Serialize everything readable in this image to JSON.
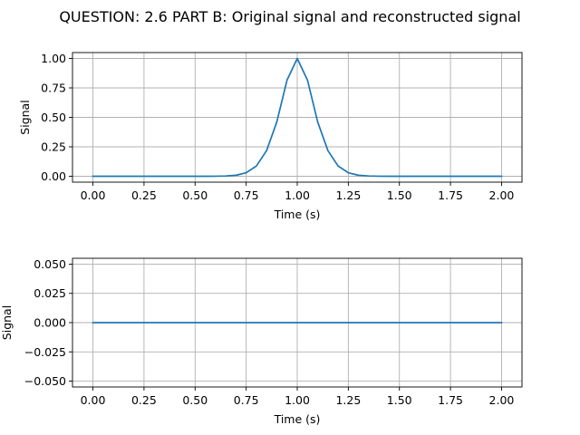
{
  "figure": {
    "suptitle": "QUESTION: 2.6 PART B:  Original signal and reconstructed signal"
  },
  "chart_data": [
    {
      "type": "line",
      "title": "",
      "xlabel": "Time (s)",
      "ylabel": "Signal",
      "xlim": [
        -0.1,
        2.1
      ],
      "ylim": [
        -0.05,
        1.05
      ],
      "xticks": [
        0.0,
        0.25,
        0.5,
        0.75,
        1.0,
        1.25,
        1.5,
        1.75,
        2.0
      ],
      "xtick_labels": [
        "0.00",
        "0.25",
        "0.50",
        "0.75",
        "1.00",
        "1.25",
        "1.50",
        "1.75",
        "2.00"
      ],
      "yticks": [
        0.0,
        0.25,
        0.5,
        0.75,
        1.0
      ],
      "ytick_labels": [
        "0.00",
        "0.25",
        "0.50",
        "0.75",
        "1.00"
      ],
      "grid": true,
      "series": [
        {
          "color": "#1f77b4",
          "x": [
            0.0,
            0.1,
            0.2,
            0.3,
            0.4,
            0.5,
            0.55,
            0.6,
            0.65,
            0.7,
            0.75,
            0.8,
            0.85,
            0.9,
            0.95,
            1.0,
            1.05,
            1.1,
            1.15,
            1.2,
            1.25,
            1.3,
            1.35,
            1.4,
            1.45,
            1.5,
            1.6,
            1.7,
            1.8,
            1.9,
            2.0
          ],
          "values": [
            0.0,
            0.0,
            0.0,
            0.0,
            0.0,
            0.0,
            0.0,
            0.0005,
            0.0022,
            0.0087,
            0.0297,
            0.0872,
            0.2176,
            0.4613,
            0.8167,
            1.0,
            0.8167,
            0.4613,
            0.2176,
            0.0872,
            0.0297,
            0.0087,
            0.0022,
            0.0005,
            0.0,
            0.0,
            0.0,
            0.0,
            0.0,
            0.0,
            0.0
          ]
        }
      ]
    },
    {
      "type": "line",
      "title": "",
      "xlabel": "Time (s)",
      "ylabel": "Signal",
      "xlim": [
        -0.1,
        2.1
      ],
      "ylim": [
        -0.055,
        0.055
      ],
      "xticks": [
        0.0,
        0.25,
        0.5,
        0.75,
        1.0,
        1.25,
        1.5,
        1.75,
        2.0
      ],
      "xtick_labels": [
        "0.00",
        "0.25",
        "0.50",
        "0.75",
        "1.00",
        "1.25",
        "1.50",
        "1.75",
        "2.00"
      ],
      "yticks": [
        -0.05,
        -0.025,
        0.0,
        0.025,
        0.05
      ],
      "ytick_labels": [
        "−0.050",
        "−0.025",
        "0.000",
        "0.025",
        "0.050"
      ],
      "grid": true,
      "series": [
        {
          "color": "#1f77b4",
          "x": [
            0.0,
            0.25,
            0.5,
            0.75,
            1.0,
            1.25,
            1.5,
            1.75,
            2.0
          ],
          "values": [
            0.0,
            0.0,
            0.0,
            0.0,
            0.0,
            0.0,
            0.0,
            0.0,
            0.0
          ]
        }
      ]
    }
  ]
}
